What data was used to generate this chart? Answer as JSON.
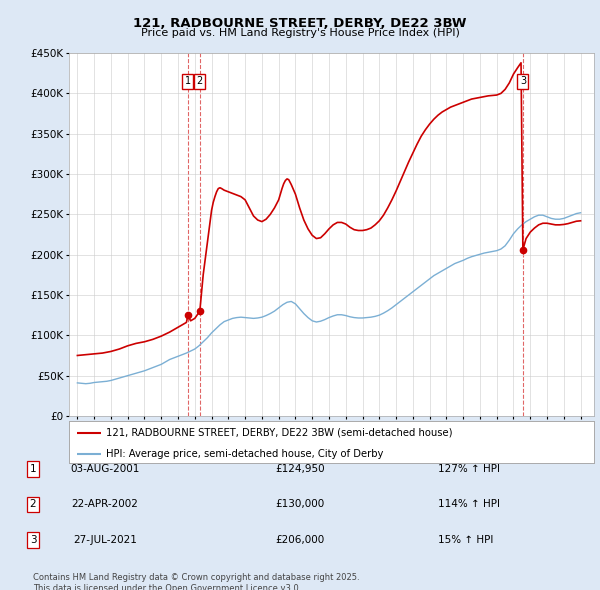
{
  "title": "121, RADBOURNE STREET, DERBY, DE22 3BW",
  "subtitle": "Price paid vs. HM Land Registry's House Price Index (HPI)",
  "property_label": "121, RADBOURNE STREET, DERBY, DE22 3BW (semi-detached house)",
  "hpi_label": "HPI: Average price, semi-detached house, City of Derby",
  "property_color": "#cc0000",
  "hpi_color": "#7bafd4",
  "background_color": "#dde8f5",
  "plot_bg_color": "#ffffff",
  "transactions": [
    {
      "num": 1,
      "date_label": "03-AUG-2001",
      "price": 124950,
      "year": 2001.59,
      "pct": "127% ↑ HPI"
    },
    {
      "num": 2,
      "date_label": "22-APR-2002",
      "price": 130000,
      "year": 2002.3,
      "pct": "114% ↑ HPI"
    },
    {
      "num": 3,
      "date_label": "27-JUL-2021",
      "price": 206000,
      "year": 2021.56,
      "pct": "15% ↑ HPI"
    }
  ],
  "copyright_text": "Contains HM Land Registry data © Crown copyright and database right 2025.\nThis data is licensed under the Open Government Licence v3.0.",
  "ylim": [
    0,
    450000
  ],
  "yticks": [
    0,
    50000,
    100000,
    150000,
    200000,
    250000,
    300000,
    350000,
    400000,
    450000
  ],
  "ytick_labels": [
    "£0",
    "£50K",
    "£100K",
    "£150K",
    "£200K",
    "£250K",
    "£300K",
    "£350K",
    "£400K",
    "£450K"
  ],
  "xlim_start": 1994.5,
  "xlim_end": 2025.8,
  "hpi_data": [
    [
      1995.0,
      41000
    ],
    [
      1995.25,
      40500
    ],
    [
      1995.5,
      40000
    ],
    [
      1995.75,
      40500
    ],
    [
      1996.0,
      41500
    ],
    [
      1996.25,
      42000
    ],
    [
      1996.5,
      42500
    ],
    [
      1996.75,
      43000
    ],
    [
      1997.0,
      44000
    ],
    [
      1997.25,
      45500
    ],
    [
      1997.5,
      47000
    ],
    [
      1997.75,
      48500
    ],
    [
      1998.0,
      50000
    ],
    [
      1998.25,
      51500
    ],
    [
      1998.5,
      53000
    ],
    [
      1998.75,
      54500
    ],
    [
      1999.0,
      56000
    ],
    [
      1999.25,
      58000
    ],
    [
      1999.5,
      60000
    ],
    [
      1999.75,
      62000
    ],
    [
      2000.0,
      64000
    ],
    [
      2000.25,
      67000
    ],
    [
      2000.5,
      70000
    ],
    [
      2000.75,
      72000
    ],
    [
      2001.0,
      74000
    ],
    [
      2001.25,
      76000
    ],
    [
      2001.5,
      78000
    ],
    [
      2001.75,
      80500
    ],
    [
      2002.0,
      83000
    ],
    [
      2002.25,
      87000
    ],
    [
      2002.5,
      92000
    ],
    [
      2002.75,
      97000
    ],
    [
      2003.0,
      103000
    ],
    [
      2003.25,
      108000
    ],
    [
      2003.5,
      113000
    ],
    [
      2003.75,
      117000
    ],
    [
      2004.0,
      119000
    ],
    [
      2004.25,
      121000
    ],
    [
      2004.5,
      122000
    ],
    [
      2004.75,
      122500
    ],
    [
      2005.0,
      122000
    ],
    [
      2005.25,
      121500
    ],
    [
      2005.5,
      121000
    ],
    [
      2005.75,
      121500
    ],
    [
      2006.0,
      122500
    ],
    [
      2006.25,
      124500
    ],
    [
      2006.5,
      127000
    ],
    [
      2006.75,
      130000
    ],
    [
      2007.0,
      134000
    ],
    [
      2007.25,
      138000
    ],
    [
      2007.5,
      141000
    ],
    [
      2007.75,
      142000
    ],
    [
      2008.0,
      139000
    ],
    [
      2008.25,
      133000
    ],
    [
      2008.5,
      127000
    ],
    [
      2008.75,
      122000
    ],
    [
      2009.0,
      118000
    ],
    [
      2009.25,
      116500
    ],
    [
      2009.5,
      117500
    ],
    [
      2009.75,
      119500
    ],
    [
      2010.0,
      122000
    ],
    [
      2010.25,
      124000
    ],
    [
      2010.5,
      125500
    ],
    [
      2010.75,
      125500
    ],
    [
      2011.0,
      124500
    ],
    [
      2011.25,
      123000
    ],
    [
      2011.5,
      122000
    ],
    [
      2011.75,
      121500
    ],
    [
      2012.0,
      121500
    ],
    [
      2012.25,
      122000
    ],
    [
      2012.5,
      122500
    ],
    [
      2012.75,
      123500
    ],
    [
      2013.0,
      125000
    ],
    [
      2013.25,
      127500
    ],
    [
      2013.5,
      130500
    ],
    [
      2013.75,
      134000
    ],
    [
      2014.0,
      138000
    ],
    [
      2014.25,
      142000
    ],
    [
      2014.5,
      146000
    ],
    [
      2014.75,
      150000
    ],
    [
      2015.0,
      154000
    ],
    [
      2015.25,
      158000
    ],
    [
      2015.5,
      162000
    ],
    [
      2015.75,
      166000
    ],
    [
      2016.0,
      170000
    ],
    [
      2016.25,
      174000
    ],
    [
      2016.5,
      177000
    ],
    [
      2016.75,
      180000
    ],
    [
      2017.0,
      183000
    ],
    [
      2017.25,
      186000
    ],
    [
      2017.5,
      189000
    ],
    [
      2017.75,
      191000
    ],
    [
      2018.0,
      193000
    ],
    [
      2018.25,
      195500
    ],
    [
      2018.5,
      197500
    ],
    [
      2018.75,
      199000
    ],
    [
      2019.0,
      200500
    ],
    [
      2019.25,
      202000
    ],
    [
      2019.5,
      203000
    ],
    [
      2019.75,
      204000
    ],
    [
      2020.0,
      205000
    ],
    [
      2020.25,
      207000
    ],
    [
      2020.5,
      211000
    ],
    [
      2020.75,
      218000
    ],
    [
      2021.0,
      226000
    ],
    [
      2021.25,
      232000
    ],
    [
      2021.5,
      237000
    ],
    [
      2021.75,
      241000
    ],
    [
      2022.0,
      244000
    ],
    [
      2022.25,
      247000
    ],
    [
      2022.5,
      249000
    ],
    [
      2022.75,
      249000
    ],
    [
      2023.0,
      247000
    ],
    [
      2023.25,
      245000
    ],
    [
      2023.5,
      244000
    ],
    [
      2023.75,
      244000
    ],
    [
      2024.0,
      245000
    ],
    [
      2024.25,
      247000
    ],
    [
      2024.5,
      249000
    ],
    [
      2024.75,
      251000
    ],
    [
      2025.0,
      252000
    ]
  ],
  "property_data": [
    [
      1995.0,
      75000
    ],
    [
      1995.25,
      75500
    ],
    [
      1995.5,
      76000
    ],
    [
      1995.75,
      76500
    ],
    [
      1996.0,
      77000
    ],
    [
      1996.25,
      77500
    ],
    [
      1996.5,
      78000
    ],
    [
      1996.75,
      79000
    ],
    [
      1997.0,
      80000
    ],
    [
      1997.25,
      81500
    ],
    [
      1997.5,
      83000
    ],
    [
      1997.75,
      85000
    ],
    [
      1998.0,
      87000
    ],
    [
      1998.25,
      88500
    ],
    [
      1998.5,
      90000
    ],
    [
      1998.75,
      91000
    ],
    [
      1999.0,
      92000
    ],
    [
      1999.25,
      93500
    ],
    [
      1999.5,
      95000
    ],
    [
      1999.75,
      97000
    ],
    [
      2000.0,
      99000
    ],
    [
      2000.25,
      101500
    ],
    [
      2000.5,
      104000
    ],
    [
      2000.75,
      107000
    ],
    [
      2001.0,
      110000
    ],
    [
      2001.25,
      113000
    ],
    [
      2001.5,
      116000
    ],
    [
      2001.59,
      124950
    ],
    [
      2001.75,
      118000
    ],
    [
      2002.0,
      121000
    ],
    [
      2002.3,
      130000
    ],
    [
      2002.5,
      175000
    ],
    [
      2002.75,
      215000
    ],
    [
      2003.0,
      255000
    ],
    [
      2003.1,
      265000
    ],
    [
      2003.2,
      272000
    ],
    [
      2003.3,
      278000
    ],
    [
      2003.4,
      282000
    ],
    [
      2003.5,
      283000
    ],
    [
      2003.6,
      282000
    ],
    [
      2003.75,
      280000
    ],
    [
      2004.0,
      278000
    ],
    [
      2004.25,
      276000
    ],
    [
      2004.5,
      274000
    ],
    [
      2004.75,
      272000
    ],
    [
      2005.0,
      268000
    ],
    [
      2005.25,
      258000
    ],
    [
      2005.5,
      248000
    ],
    [
      2005.75,
      243000
    ],
    [
      2006.0,
      241000
    ],
    [
      2006.25,
      244000
    ],
    [
      2006.5,
      250000
    ],
    [
      2006.75,
      258000
    ],
    [
      2007.0,
      268000
    ],
    [
      2007.1,
      275000
    ],
    [
      2007.2,
      282000
    ],
    [
      2007.3,
      288000
    ],
    [
      2007.4,
      292000
    ],
    [
      2007.5,
      294000
    ],
    [
      2007.6,
      293000
    ],
    [
      2007.75,
      287000
    ],
    [
      2008.0,
      275000
    ],
    [
      2008.25,
      258000
    ],
    [
      2008.5,
      243000
    ],
    [
      2008.75,
      232000
    ],
    [
      2009.0,
      224000
    ],
    [
      2009.25,
      220000
    ],
    [
      2009.5,
      221000
    ],
    [
      2009.75,
      226000
    ],
    [
      2010.0,
      232000
    ],
    [
      2010.25,
      237000
    ],
    [
      2010.5,
      240000
    ],
    [
      2010.75,
      240000
    ],
    [
      2011.0,
      238000
    ],
    [
      2011.25,
      234000
    ],
    [
      2011.5,
      231000
    ],
    [
      2011.75,
      230000
    ],
    [
      2012.0,
      230000
    ],
    [
      2012.25,
      231000
    ],
    [
      2012.5,
      233000
    ],
    [
      2012.75,
      237000
    ],
    [
      2013.0,
      242000
    ],
    [
      2013.25,
      249000
    ],
    [
      2013.5,
      258000
    ],
    [
      2013.75,
      268000
    ],
    [
      2014.0,
      279000
    ],
    [
      2014.25,
      291000
    ],
    [
      2014.5,
      303000
    ],
    [
      2014.75,
      315000
    ],
    [
      2015.0,
      326000
    ],
    [
      2015.25,
      337000
    ],
    [
      2015.5,
      347000
    ],
    [
      2015.75,
      355000
    ],
    [
      2016.0,
      362000
    ],
    [
      2016.25,
      368000
    ],
    [
      2016.5,
      373000
    ],
    [
      2016.75,
      377000
    ],
    [
      2017.0,
      380000
    ],
    [
      2017.25,
      383000
    ],
    [
      2017.5,
      385000
    ],
    [
      2017.75,
      387000
    ],
    [
      2018.0,
      389000
    ],
    [
      2018.25,
      391000
    ],
    [
      2018.5,
      393000
    ],
    [
      2018.75,
      394000
    ],
    [
      2019.0,
      395000
    ],
    [
      2019.25,
      396000
    ],
    [
      2019.5,
      397000
    ],
    [
      2019.75,
      397500
    ],
    [
      2020.0,
      398000
    ],
    [
      2020.25,
      400000
    ],
    [
      2020.5,
      405000
    ],
    [
      2020.75,
      413000
    ],
    [
      2021.0,
      424000
    ],
    [
      2021.25,
      432000
    ],
    [
      2021.45,
      438000
    ],
    [
      2021.56,
      206000
    ],
    [
      2021.75,
      220000
    ],
    [
      2022.0,
      228000
    ],
    [
      2022.25,
      233000
    ],
    [
      2022.5,
      237000
    ],
    [
      2022.75,
      239000
    ],
    [
      2023.0,
      239000
    ],
    [
      2023.25,
      238000
    ],
    [
      2023.5,
      237000
    ],
    [
      2023.75,
      237000
    ],
    [
      2024.0,
      237500
    ],
    [
      2024.25,
      238500
    ],
    [
      2024.5,
      240000
    ],
    [
      2024.75,
      241500
    ],
    [
      2025.0,
      242000
    ]
  ]
}
